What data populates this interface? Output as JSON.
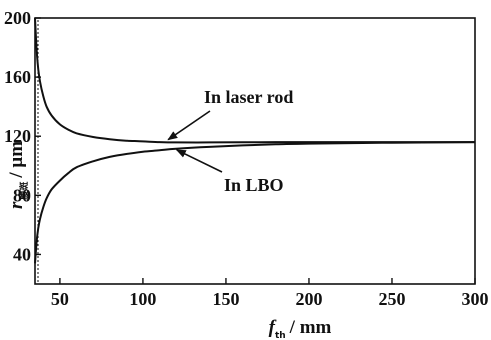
{
  "chart_data": {
    "type": "line",
    "xlabel": {
      "main": "f",
      "sub": "th",
      "unit": "/ mm"
    },
    "ylabel": {
      "main": "r",
      "sub": "腰斑",
      "unit": "/ μm"
    },
    "xlim": [
      35,
      300
    ],
    "ylim": [
      20,
      200
    ],
    "xticks": [
      50,
      100,
      150,
      200,
      250,
      300
    ],
    "yticks": [
      40,
      80,
      120,
      160,
      200
    ],
    "xtick_labels": [
      "50",
      "100",
      "150",
      "200",
      "250",
      "300"
    ],
    "ytick_labels": [
      "40",
      "80",
      "120",
      "160",
      "200"
    ],
    "grid": false,
    "legend": "none",
    "series": [
      {
        "name": "In laser rod",
        "x": [
          35,
          36,
          37,
          38,
          40,
          42,
          45,
          50,
          55,
          60,
          70,
          80,
          90,
          100,
          110,
          120,
          140,
          160,
          180,
          200,
          250,
          300
        ],
        "y": [
          200,
          178,
          165,
          157,
          147,
          140,
          134,
          128,
          124.5,
          122,
          119.5,
          118,
          117,
          116.5,
          116,
          115.8,
          115.8,
          115.9,
          116,
          116,
          116,
          116
        ]
      },
      {
        "name": "In LBO",
        "x": [
          35,
          36,
          37,
          38,
          40,
          42,
          45,
          50,
          55,
          60,
          70,
          80,
          90,
          100,
          110,
          120,
          140,
          160,
          180,
          200,
          250,
          300
        ],
        "y": [
          34,
          49,
          58,
          64,
          72,
          78,
          84,
          90,
          95,
          99,
          103,
          106,
          108,
          109.5,
          110.5,
          111.5,
          112.8,
          113.8,
          114.5,
          115,
          115.6,
          116
        ]
      }
    ],
    "reference_line": {
      "x": 35
    },
    "annotations": [
      {
        "text": "In laser rod",
        "points_to": {
          "x": 113,
          "y": 116
        }
      },
      {
        "text": "In LBO",
        "points_to": {
          "x": 118,
          "y": 112
        }
      }
    ]
  }
}
